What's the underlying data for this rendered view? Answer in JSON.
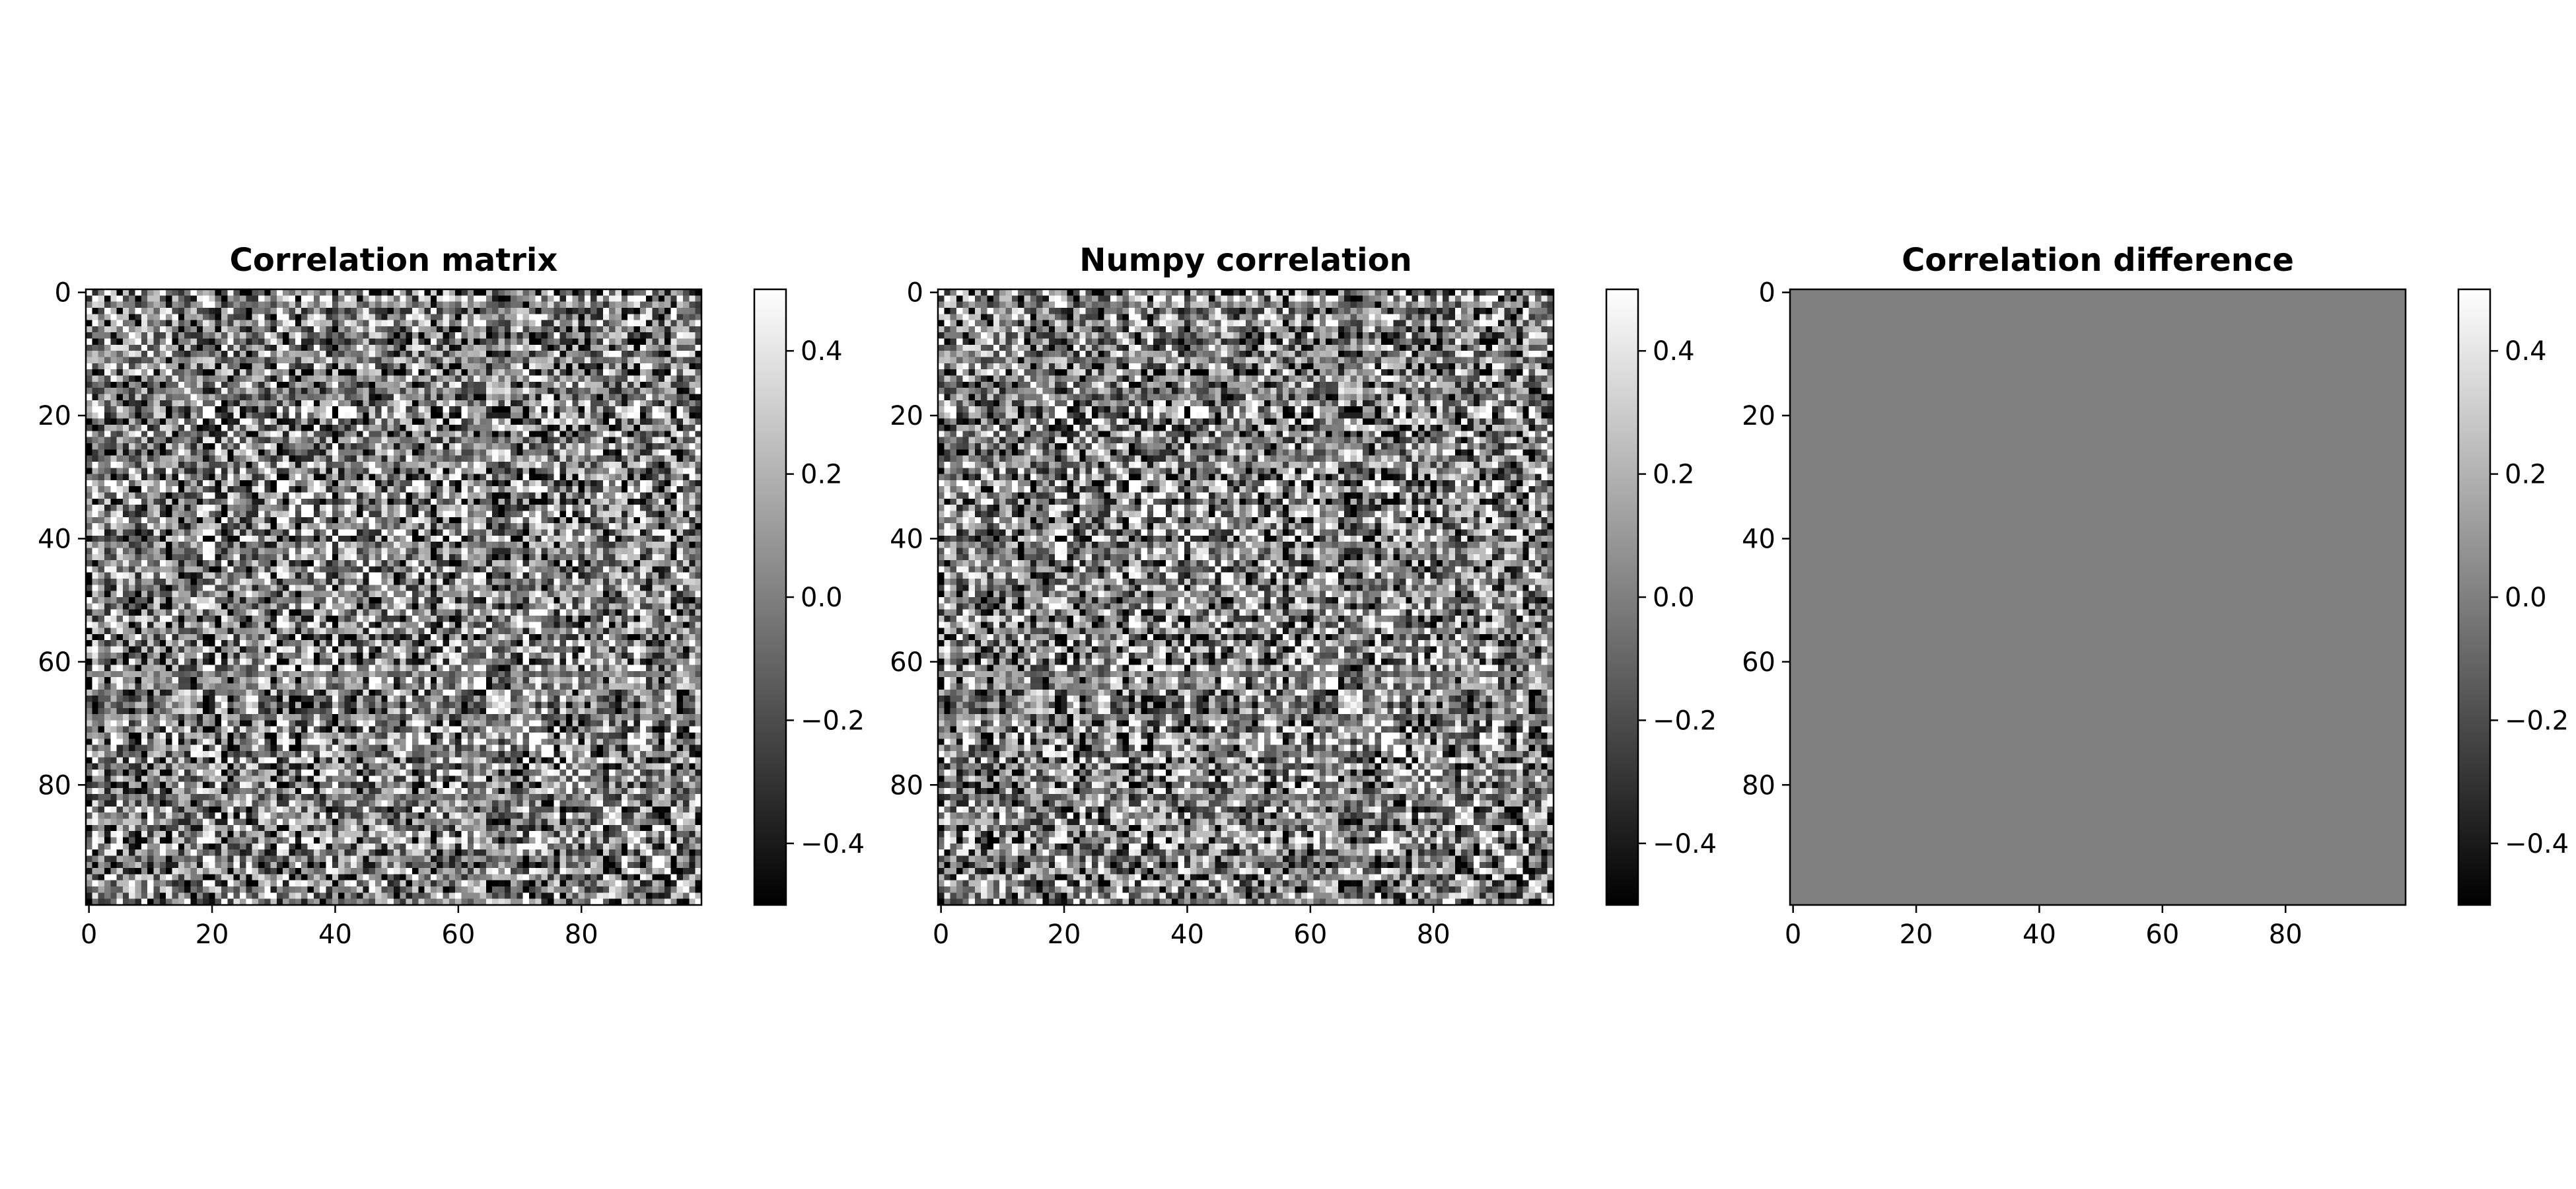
{
  "chart_data": [
    {
      "type": "heatmap",
      "title": "Correlation matrix",
      "colormap": "gray",
      "rows": 100,
      "cols": 100,
      "vmin": -0.5,
      "vmax": 0.5,
      "x_ticks": [
        "0",
        "20",
        "40",
        "60",
        "80"
      ],
      "y_ticks": [
        "0",
        "20",
        "40",
        "60",
        "80"
      ],
      "colorbar_ticks": [
        "0.4",
        "0.2",
        "0.0",
        "−0.2",
        "−0.4"
      ],
      "values_description": "symmetric 100x100 correlation matrix, values roughly within [-0.5, 0.5], strong banded block pattern",
      "seed": 7
    },
    {
      "type": "heatmap",
      "title": "Numpy correlation",
      "colormap": "gray",
      "rows": 100,
      "cols": 100,
      "vmin": -0.5,
      "vmax": 0.5,
      "x_ticks": [
        "0",
        "20",
        "40",
        "60",
        "80"
      ],
      "y_ticks": [
        "0",
        "20",
        "40",
        "60",
        "80"
      ],
      "colorbar_ticks": [
        "0.4",
        "0.2",
        "0.0",
        "−0.2",
        "−0.4"
      ],
      "values_description": "same matrix as 'Correlation matrix'",
      "seed": 7
    },
    {
      "type": "heatmap",
      "title": "Correlation difference",
      "colormap": "gray",
      "rows": 100,
      "cols": 100,
      "vmin": -0.5,
      "vmax": 0.5,
      "x_ticks": [
        "0",
        "20",
        "40",
        "60",
        "80"
      ],
      "y_ticks": [
        "0",
        "20",
        "40",
        "60",
        "80"
      ],
      "colorbar_ticks": [
        "0.4",
        "0.2",
        "0.0",
        "−0.2",
        "−0.4"
      ],
      "constant_value": 0.0
    }
  ]
}
